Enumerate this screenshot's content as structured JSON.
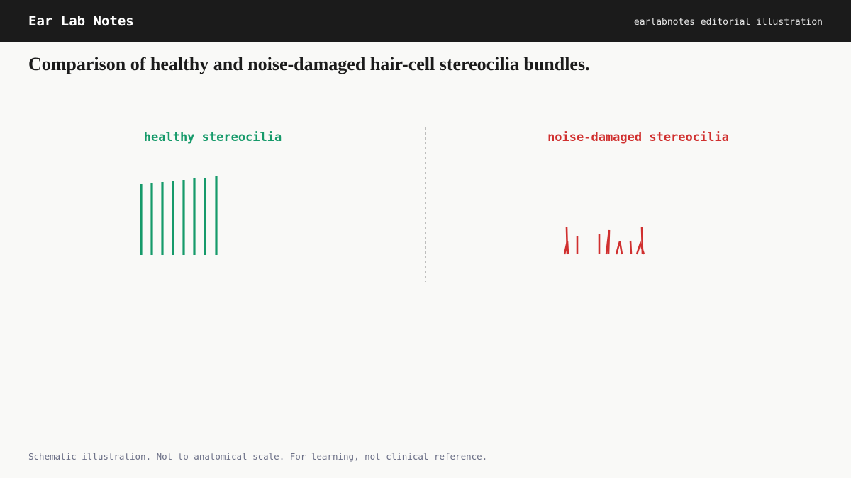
{
  "header": {
    "title": "Ear Lab Notes",
    "subtitle": "earlabnotes editorial illustration"
  },
  "title": "Comparison of healthy and noise-damaged hair-cell stereocilia bundles.",
  "panels": [
    {
      "label": "healthy stereocilia"
    },
    {
      "label": "noise-damaged stereocilia"
    }
  ],
  "footer": "Schematic illustration. Not to anatomical scale. For learning, not clinical reference."
}
